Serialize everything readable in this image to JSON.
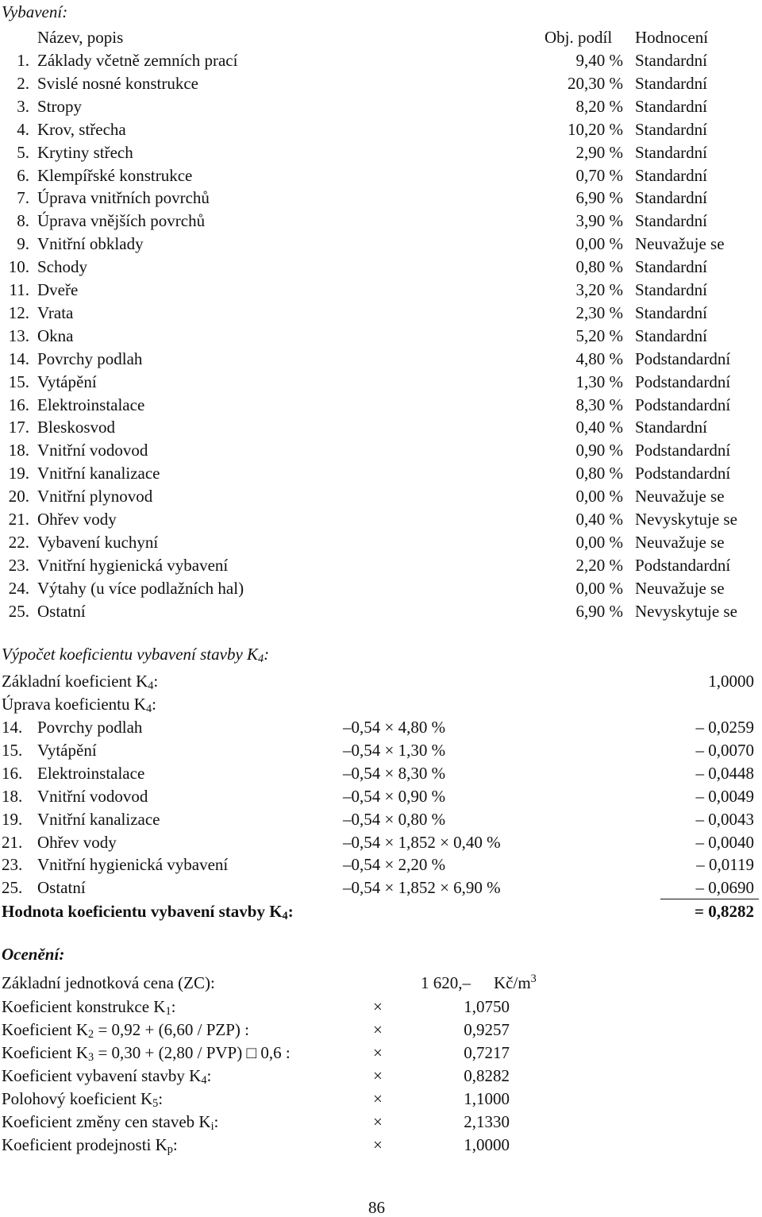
{
  "equipment": {
    "heading": "Vybavení:",
    "columns": {
      "name": "Název, popis",
      "share": "Obj. podíl",
      "rating": "Hodnocení"
    },
    "rows": [
      {
        "no": "1.",
        "name": "Základy včetně zemních prací",
        "share": "9,40 %",
        "rating": "Standardní"
      },
      {
        "no": "2.",
        "name": "Svislé nosné konstrukce",
        "share": "20,30 %",
        "rating": "Standardní"
      },
      {
        "no": "3.",
        "name": "Stropy",
        "share": "8,20 %",
        "rating": "Standardní"
      },
      {
        "no": "4.",
        "name": "Krov, střecha",
        "share": "10,20 %",
        "rating": "Standardní"
      },
      {
        "no": "5.",
        "name": "Krytiny střech",
        "share": "2,90 %",
        "rating": "Standardní"
      },
      {
        "no": "6.",
        "name": "Klempířské konstrukce",
        "share": "0,70 %",
        "rating": "Standardní"
      },
      {
        "no": "7.",
        "name": "Úprava vnitřních povrchů",
        "share": "6,90 %",
        "rating": "Standardní"
      },
      {
        "no": "8.",
        "name": "Úprava vnějších povrchů",
        "share": "3,90 %",
        "rating": "Standardní"
      },
      {
        "no": "9.",
        "name": "Vnitřní obklady",
        "share": "0,00 %",
        "rating": "Neuvažuje se"
      },
      {
        "no": "10.",
        "name": "Schody",
        "share": "0,80 %",
        "rating": "Standardní"
      },
      {
        "no": "11.",
        "name": "Dveře",
        "share": "3,20 %",
        "rating": "Standardní"
      },
      {
        "no": "12.",
        "name": "Vrata",
        "share": "2,30 %",
        "rating": "Standardní"
      },
      {
        "no": "13.",
        "name": "Okna",
        "share": "5,20 %",
        "rating": "Standardní"
      },
      {
        "no": "14.",
        "name": "Povrchy podlah",
        "share": "4,80 %",
        "rating": "Podstandardní"
      },
      {
        "no": "15.",
        "name": "Vytápění",
        "share": "1,30 %",
        "rating": "Podstandardní"
      },
      {
        "no": "16.",
        "name": "Elektroinstalace",
        "share": "8,30 %",
        "rating": "Podstandardní"
      },
      {
        "no": "17.",
        "name": "Bleskosvod",
        "share": "0,40 %",
        "rating": "Standardní"
      },
      {
        "no": "18.",
        "name": "Vnitřní vodovod",
        "share": "0,90 %",
        "rating": "Podstandardní"
      },
      {
        "no": "19.",
        "name": "Vnitřní kanalizace",
        "share": "0,80 %",
        "rating": "Podstandardní"
      },
      {
        "no": "20.",
        "name": "Vnitřní plynovod",
        "share": "0,00 %",
        "rating": "Neuvažuje se"
      },
      {
        "no": "21.",
        "name": "Ohřev vody",
        "share": "0,40 %",
        "rating": "Nevyskytuje se"
      },
      {
        "no": "22.",
        "name": "Vybavení kuchyní",
        "share": "0,00 %",
        "rating": "Neuvažuje se"
      },
      {
        "no": "23.",
        "name": "Vnitřní hygienická vybavení",
        "share": "2,20 %",
        "rating": "Podstandardní"
      },
      {
        "no": "24.",
        "name": "Výtahy (u více podlažních hal)",
        "share": "0,00 %",
        "rating": "Neuvažuje se"
      },
      {
        "no": "25.",
        "name": "Ostatní",
        "share": "6,90 %",
        "rating": "Nevyskytuje se"
      }
    ]
  },
  "k4_calc": {
    "heading": "Výpočet koeficientu vybavení stavby K",
    "heading_sub": "4",
    "heading_end": ":",
    "base_label": "Základní koeficient K",
    "base_sub": "4",
    "base_end": ":",
    "base_value": "1,0000",
    "adjust_label": "Úprava koeficientu K",
    "adjust_sub": "4",
    "adjust_end": ":",
    "rows": [
      {
        "no": "14.",
        "name": "Povrchy podlah",
        "formula": "–0,54 × 4,80 %",
        "value": "– 0,0259"
      },
      {
        "no": "15.",
        "name": "Vytápění",
        "formula": "–0,54 × 1,30 %",
        "value": "– 0,0070"
      },
      {
        "no": "16.",
        "name": "Elektroinstalace",
        "formula": "–0,54 × 8,30 %",
        "value": "– 0,0448"
      },
      {
        "no": "18.",
        "name": "Vnitřní vodovod",
        "formula": "–0,54 × 0,90 %",
        "value": "– 0,0049"
      },
      {
        "no": "19.",
        "name": "Vnitřní kanalizace",
        "formula": "–0,54 × 0,80 %",
        "value": "– 0,0043"
      },
      {
        "no": "21.",
        "name": "Ohřev vody",
        "formula": "–0,54 × 1,852 × 0,40 %",
        "value": "– 0,0040"
      },
      {
        "no": "23.",
        "name": "Vnitřní hygienická vybavení",
        "formula": "–0,54 × 2,20 %",
        "value": "– 0,0119"
      },
      {
        "no": "25.",
        "name": "Ostatní",
        "formula": "–0,54 × 1,852 × 6,90 %",
        "value": "– 0,0690"
      }
    ],
    "total_label": "Hodnota koeficientu vybavení stavby K",
    "total_sub": "4",
    "total_end": ":",
    "total_value": "= 0,8282"
  },
  "valuation": {
    "heading": "Ocenění:",
    "base_price": {
      "label": "Základní jednotková cena (ZC):",
      "value": "1 620,–",
      "unit": "Kč/m",
      "unit_sup": "3"
    },
    "rows": [
      {
        "pre": "Koeficient konstrukce K",
        "sub": "1",
        "post": ":",
        "op": "×",
        "value": "1,0750"
      },
      {
        "pre": "Koeficient K",
        "sub": "2",
        "post": " = 0,92 + (6,60 / PZP) :",
        "op": "×",
        "value": "0,9257"
      },
      {
        "pre": "Koeficient K",
        "sub": "3",
        "post": " = 0,30 + (2,80 / PVP) □ 0,6 :",
        "op": "×",
        "value": "0,7217"
      },
      {
        "pre": "Koeficient vybavení stavby K",
        "sub": "4",
        "post": ":",
        "op": "×",
        "value": "0,8282"
      },
      {
        "pre": "Polohový koeficient K",
        "sub": "5",
        "post": ":",
        "op": "×",
        "value": "1,1000"
      },
      {
        "pre": "Koeficient změny cen staveb K",
        "sub": "i",
        "post": ":",
        "op": "×",
        "value": "2,1330"
      },
      {
        "pre": "Koeficient prodejnosti K",
        "sub": "p",
        "post": ":",
        "op": "×",
        "value": "1,0000"
      }
    ]
  },
  "page_number": "86"
}
